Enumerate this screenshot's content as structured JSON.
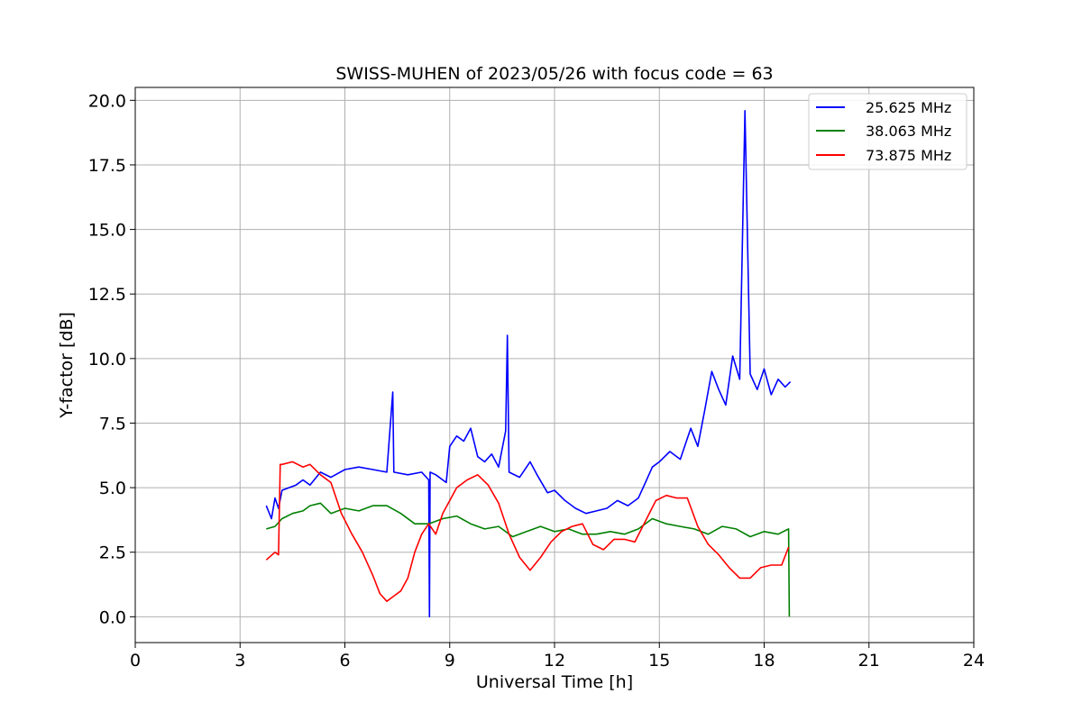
{
  "chart_data": {
    "type": "line",
    "title": "SWISS-MUHEN of 2023/05/26 with focus code = 63",
    "xlabel": "Universal Time [h]",
    "ylabel": "Y-factor [dB]",
    "xlim": [
      0,
      24
    ],
    "ylim": [
      -1.0,
      20.5
    ],
    "xticks": [
      0,
      3,
      6,
      9,
      12,
      15,
      18,
      21,
      24
    ],
    "xtick_labels": [
      "0",
      "3",
      "6",
      "9",
      "12",
      "15",
      "18",
      "21",
      "24"
    ],
    "yticks": [
      0.0,
      2.5,
      5.0,
      7.5,
      10.0,
      12.5,
      15.0,
      17.5,
      20.0
    ],
    "ytick_labels": [
      "0.0",
      "2.5",
      "5.0",
      "7.5",
      "10.0",
      "12.5",
      "15.0",
      "17.5",
      "20.0"
    ],
    "grid": true,
    "legend_position": "top-right",
    "series": [
      {
        "name": "25.625 MHz",
        "color": "#0000ff",
        "x": [
          3.75,
          3.9,
          4.0,
          4.1,
          4.2,
          4.4,
          4.6,
          4.8,
          5.0,
          5.3,
          5.6,
          6.0,
          6.4,
          6.8,
          7.2,
          7.37,
          7.4,
          7.8,
          8.2,
          8.4,
          8.42,
          8.44,
          8.6,
          8.9,
          9.0,
          9.2,
          9.4,
          9.6,
          9.8,
          10.0,
          10.2,
          10.4,
          10.6,
          10.65,
          10.7,
          11.0,
          11.3,
          11.5,
          11.8,
          12.0,
          12.3,
          12.6,
          12.9,
          13.2,
          13.5,
          13.8,
          14.1,
          14.4,
          14.6,
          14.8,
          15.0,
          15.3,
          15.6,
          15.9,
          16.1,
          16.3,
          16.5,
          16.7,
          16.9,
          17.1,
          17.3,
          17.45,
          17.6,
          17.8,
          18.0,
          18.2,
          18.4,
          18.6,
          18.75
        ],
        "y": [
          4.3,
          3.8,
          4.6,
          4.2,
          4.9,
          5.0,
          5.1,
          5.3,
          5.1,
          5.6,
          5.4,
          5.7,
          5.8,
          5.7,
          5.6,
          8.7,
          5.6,
          5.5,
          5.6,
          5.3,
          0.0,
          5.6,
          5.5,
          5.2,
          6.6,
          7.0,
          6.8,
          7.3,
          6.2,
          6.0,
          6.3,
          5.8,
          7.2,
          10.9,
          5.6,
          5.4,
          6.0,
          5.5,
          4.8,
          4.9,
          4.5,
          4.2,
          4.0,
          4.1,
          4.2,
          4.5,
          4.3,
          4.6,
          5.2,
          5.8,
          6.0,
          6.4,
          6.1,
          7.3,
          6.6,
          8.0,
          9.5,
          8.8,
          8.2,
          10.1,
          9.2,
          19.6,
          9.4,
          8.8,
          9.6,
          8.6,
          9.2,
          8.9,
          9.1
        ]
      },
      {
        "name": "38.063 MHz",
        "color": "#008000",
        "x": [
          3.75,
          4.0,
          4.2,
          4.5,
          4.8,
          5.0,
          5.3,
          5.6,
          6.0,
          6.4,
          6.8,
          7.2,
          7.6,
          8.0,
          8.4,
          8.8,
          9.2,
          9.6,
          10.0,
          10.4,
          10.8,
          11.2,
          11.6,
          12.0,
          12.4,
          12.8,
          13.2,
          13.6,
          14.0,
          14.4,
          14.8,
          15.2,
          15.6,
          16.0,
          16.4,
          16.8,
          17.2,
          17.6,
          18.0,
          18.4,
          18.7,
          18.72
        ],
        "y": [
          3.4,
          3.5,
          3.8,
          4.0,
          4.1,
          4.3,
          4.4,
          4.0,
          4.2,
          4.1,
          4.3,
          4.3,
          4.0,
          3.6,
          3.6,
          3.8,
          3.9,
          3.6,
          3.4,
          3.5,
          3.1,
          3.3,
          3.5,
          3.3,
          3.4,
          3.2,
          3.2,
          3.3,
          3.2,
          3.4,
          3.8,
          3.6,
          3.5,
          3.4,
          3.2,
          3.5,
          3.4,
          3.1,
          3.3,
          3.2,
          3.4,
          0.0
        ]
      },
      {
        "name": "73.875 MHz",
        "color": "#ff0000",
        "x": [
          3.75,
          4.0,
          4.1,
          4.15,
          4.2,
          4.5,
          4.8,
          5.0,
          5.3,
          5.6,
          5.9,
          6.2,
          6.5,
          6.8,
          7.0,
          7.2,
          7.4,
          7.6,
          7.8,
          8.0,
          8.2,
          8.4,
          8.6,
          8.8,
          9.0,
          9.2,
          9.5,
          9.8,
          10.1,
          10.4,
          10.7,
          11.0,
          11.3,
          11.6,
          11.9,
          12.2,
          12.5,
          12.8,
          13.1,
          13.4,
          13.7,
          14.0,
          14.3,
          14.6,
          14.9,
          15.2,
          15.5,
          15.8,
          16.1,
          16.4,
          16.7,
          17.0,
          17.3,
          17.6,
          17.9,
          18.2,
          18.5,
          18.7
        ],
        "y": [
          2.2,
          2.5,
          2.4,
          5.9,
          5.9,
          6.0,
          5.8,
          5.9,
          5.5,
          5.2,
          4.0,
          3.2,
          2.5,
          1.6,
          0.9,
          0.6,
          0.8,
          1.0,
          1.5,
          2.5,
          3.2,
          3.6,
          3.2,
          4.0,
          4.5,
          5.0,
          5.3,
          5.5,
          5.1,
          4.4,
          3.2,
          2.3,
          1.8,
          2.3,
          2.9,
          3.3,
          3.5,
          3.6,
          2.8,
          2.6,
          3.0,
          3.0,
          2.9,
          3.7,
          4.5,
          4.7,
          4.6,
          4.6,
          3.5,
          2.8,
          2.4,
          1.9,
          1.5,
          1.5,
          1.9,
          2.0,
          2.0,
          2.7
        ]
      }
    ]
  }
}
